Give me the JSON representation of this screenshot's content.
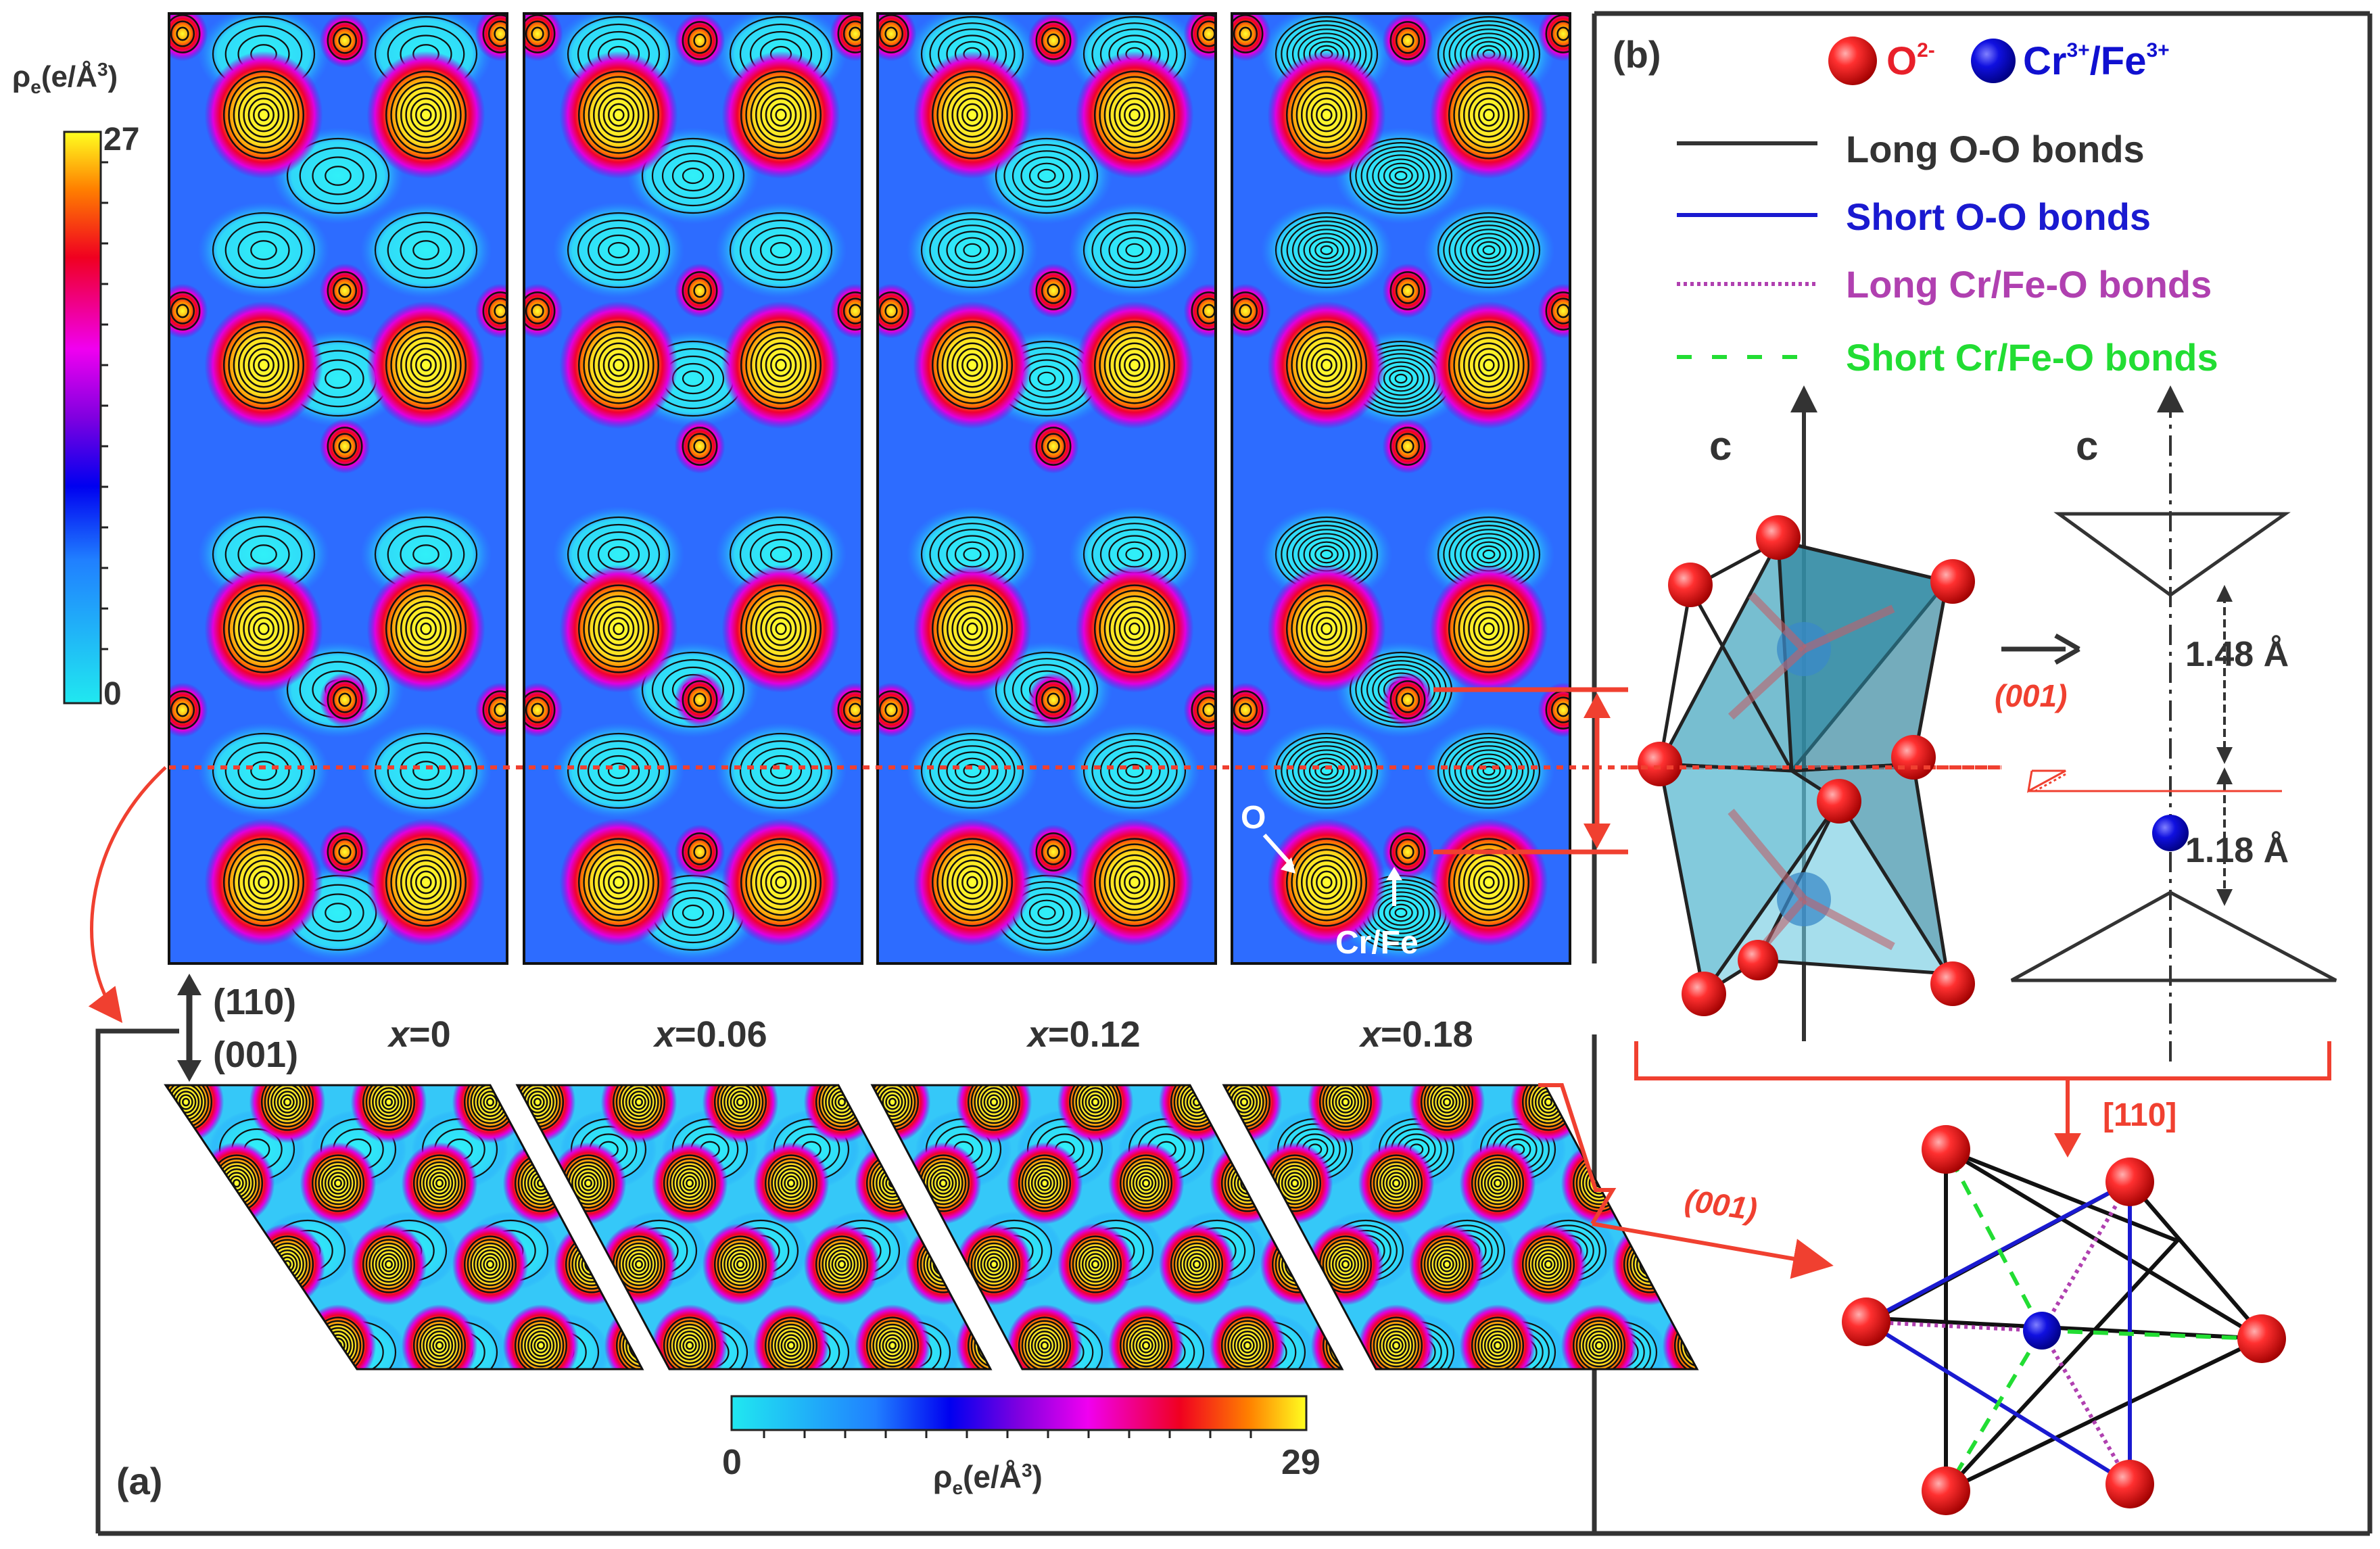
{
  "panel_a": {
    "label": "(a)",
    "colorbar_vertical": {
      "title": "ρe(e/Å3)",
      "max": "27",
      "min": "0"
    },
    "colorbar_horizontal": {
      "title": "ρe(e/Å3)",
      "max": "29",
      "min": "0"
    },
    "direction_labels": {
      "top": "(110)",
      "bottom": "(001)"
    },
    "compositions": [
      {
        "prefix": "x",
        "value": "=0"
      },
      {
        "prefix": "x",
        "value": "=0.06"
      },
      {
        "prefix": "x",
        "value": "=0.12"
      },
      {
        "prefix": "x",
        "value": "=0.18"
      }
    ],
    "annotations": {
      "o_label": "O",
      "cr_fe_label": "Cr/Fe"
    }
  },
  "panel_b": {
    "label": "(b)",
    "legend_ions": [
      {
        "label": "O",
        "charge": "2-",
        "color": "#e8202a"
      },
      {
        "label": "Cr",
        "charge": "3+",
        "label2": "/Fe",
        "charge2": "3+",
        "color": "#1010d0"
      }
    ],
    "legend_bonds": [
      {
        "label": "Long O-O bonds",
        "color": "#333333",
        "style": "solid"
      },
      {
        "label": "Short O-O bonds",
        "color": "#1a1ad0",
        "style": "solid"
      },
      {
        "label": "Long Cr/Fe-O bonds",
        "color": "#b040b0",
        "style": "dotted"
      },
      {
        "label": "Short Cr/Fe-O bonds",
        "color": "#22dd33",
        "style": "dashed"
      }
    ],
    "axis_label": "c",
    "plane_label": "(001)",
    "plane_label_2": "(001)",
    "direction_label": "[110]",
    "distances": {
      "upper": "1.48 Å",
      "lower": "1.18 Å"
    }
  }
}
